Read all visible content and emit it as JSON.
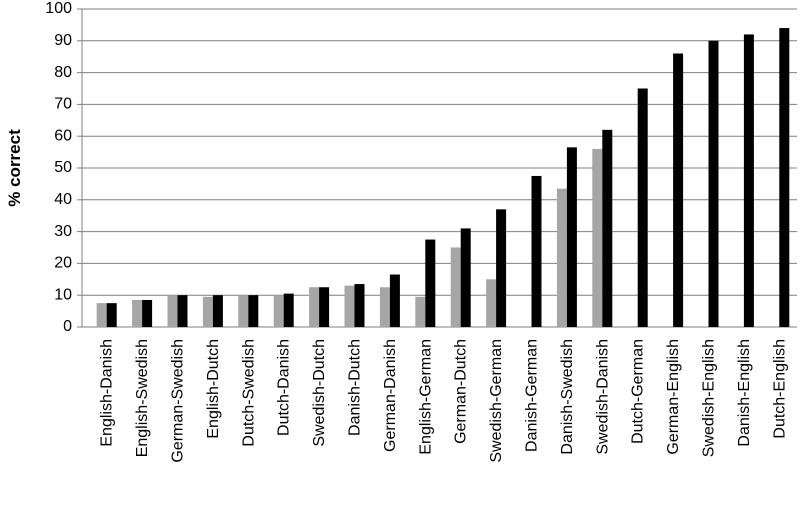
{
  "chart_data": {
    "type": "bar",
    "y_label": "% correct",
    "categories": [
      "English-Danish",
      "English-Swedish",
      "German-Swedish",
      "English-Dutch",
      "Dutch-Swedish",
      "Dutch-Danish",
      "Swedish-Dutch",
      "Danish-Dutch",
      "German-Danish",
      "English-German",
      "German-Dutch",
      "Swedish-German",
      "Danish-German",
      "Danish-Swedish",
      "Swedish-Danish",
      "Dutch-German",
      "German-English",
      "Swedish-English",
      "Danish-English",
      "Dutch-English"
    ],
    "series": [
      {
        "color": "#a6a6a6",
        "values": [
          7.5,
          8.5,
          10,
          9.5,
          10,
          10,
          12.5,
          13,
          12.5,
          9.5,
          25,
          15,
          null,
          43.5,
          56,
          null,
          null,
          null,
          null,
          null
        ]
      },
      {
        "color": "#000000",
        "values": [
          7.5,
          8.5,
          10,
          10,
          10,
          10.5,
          12.5,
          13.5,
          16.5,
          27.5,
          31,
          37,
          47.5,
          56.5,
          62,
          75,
          86,
          90,
          92,
          94
        ]
      }
    ],
    "ylim": [
      0,
      100
    ],
    "yticks": [
      0,
      10,
      20,
      30,
      40,
      50,
      60,
      70,
      80,
      90,
      100
    ],
    "grid": true
  }
}
